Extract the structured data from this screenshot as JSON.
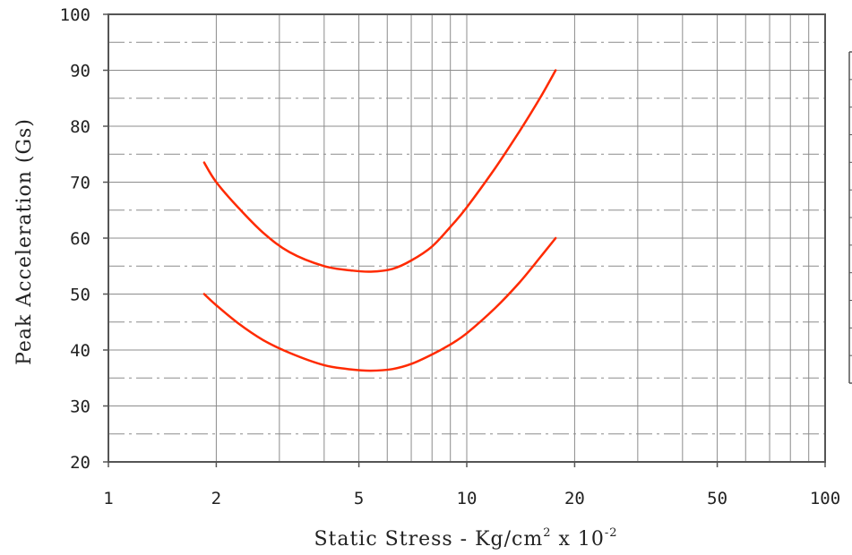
{
  "chart_data": {
    "type": "line",
    "xscale": "log",
    "xlim": [
      1,
      100
    ],
    "ylim": [
      20,
      100
    ],
    "xticks": [
      1,
      2,
      5,
      10,
      20,
      50,
      100
    ],
    "xtick_labels": [
      "1",
      "2",
      "5",
      "10",
      "20",
      "50",
      "100"
    ],
    "yticks": [
      20,
      30,
      40,
      50,
      60,
      70,
      80,
      90,
      100
    ],
    "ytick_labels": [
      "20",
      "30",
      "40",
      "50",
      "60",
      "70",
      "80",
      "90",
      "100"
    ],
    "ylabel": "Peak Acceleration (Gs)",
    "xlabel_main": "Static Stress - Kg/cm",
    "xlabel_sup1": "2",
    "xlabel_x": " x 10",
    "xlabel_sup2": "-2",
    "grid": true,
    "legend": "none",
    "series": [
      {
        "color": "#ff2a00",
        "x": [
          1.85,
          2.0,
          2.3,
          2.7,
          3.2,
          4.0,
          4.8,
          5.4,
          6.2,
          7.0,
          8.0,
          9.0,
          10.0,
          12.0,
          14.0,
          16.0,
          17.7
        ],
        "y": [
          73.5,
          70.0,
          65.5,
          61.0,
          57.5,
          55.0,
          54.2,
          54.0,
          54.5,
          56.0,
          58.5,
          62.0,
          65.5,
          72.5,
          79.0,
          85.0,
          90.0
        ]
      },
      {
        "color": "#ff2a00",
        "x": [
          1.85,
          2.0,
          2.3,
          2.7,
          3.2,
          4.0,
          4.8,
          5.4,
          6.2,
          7.0,
          8.0,
          9.0,
          10.0,
          12.0,
          14.0,
          16.0,
          17.7
        ],
        "y": [
          50.0,
          48.0,
          44.8,
          41.8,
          39.5,
          37.3,
          36.5,
          36.3,
          36.6,
          37.5,
          39.2,
          41.0,
          43.0,
          47.5,
          52.0,
          56.5,
          60.0
        ]
      }
    ]
  }
}
